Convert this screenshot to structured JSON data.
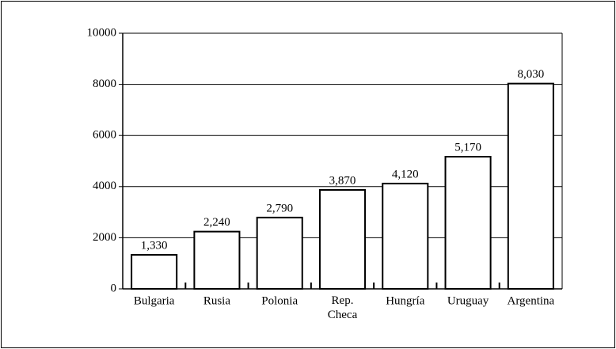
{
  "chart_data": {
    "type": "bar",
    "categories": [
      "Bulgaria",
      "Rusia",
      "Polonia",
      "Rep.\nCheca",
      "Hungría",
      "Uruguay",
      "Argentina"
    ],
    "values": [
      1330,
      2240,
      2790,
      3870,
      4120,
      5170,
      8030
    ],
    "value_labels": [
      "1,330",
      "2,240",
      "2,790",
      "3,870",
      "4,120",
      "5,170",
      "8,030"
    ],
    "color": "#ffffff",
    "ylim": [
      0,
      10000
    ],
    "yticks": [
      0,
      2000,
      4000,
      6000,
      8000,
      10000
    ],
    "grid": true
  }
}
